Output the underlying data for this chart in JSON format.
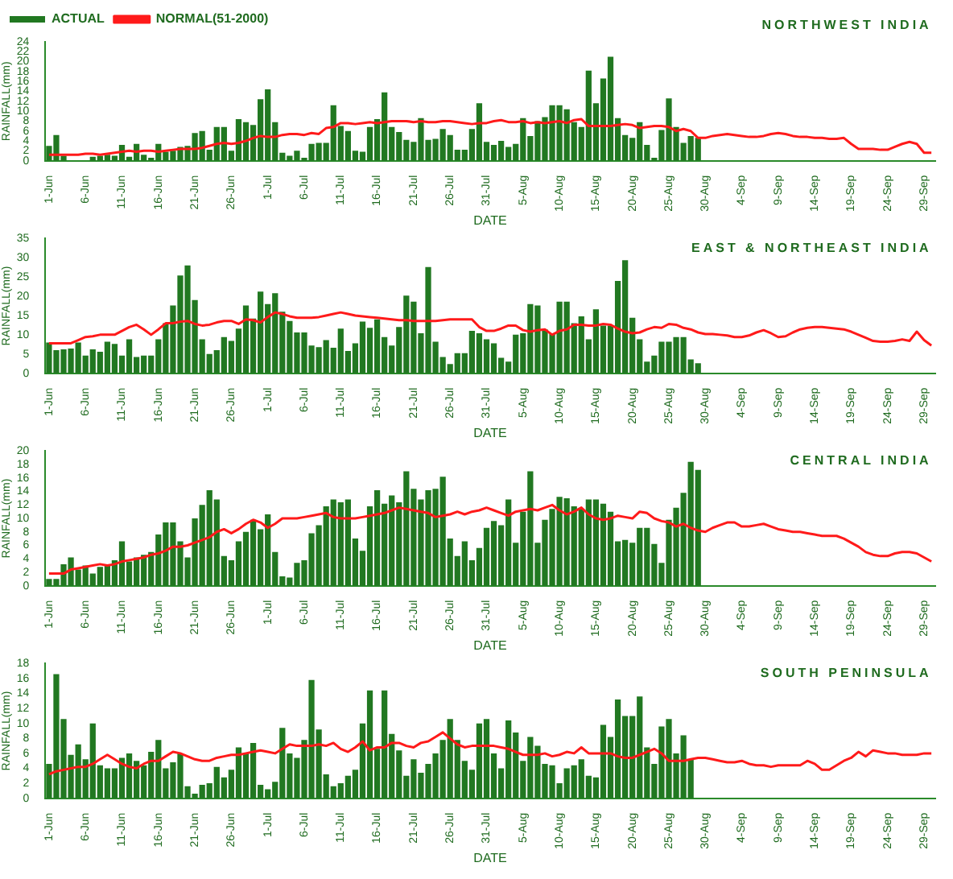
{
  "chart_data": [
    {
      "type": "bar",
      "title": "NORTHWEST INDIA",
      "xlabel": "DATE",
      "ylabel": "RAINFALL(mm)",
      "legend": "top left",
      "grid": false,
      "marker": "none",
      "ylim": [
        0,
        24
      ],
      "yticks": [
        0,
        2,
        4,
        6,
        8,
        10,
        12,
        14,
        16,
        18,
        20,
        22,
        24
      ],
      "categories": [
        "1-Jun",
        null,
        null,
        null,
        null,
        "6-Jun",
        null,
        null,
        null,
        null,
        "11-Jun",
        null,
        null,
        null,
        null,
        "16-Jun",
        null,
        null,
        null,
        null,
        "21-Jun",
        null,
        null,
        null,
        null,
        "26-Jun",
        null,
        null,
        null,
        null,
        "1-Jul",
        null,
        null,
        null,
        null,
        "6-Jul",
        null,
        null,
        null,
        null,
        "11-Jul",
        null,
        null,
        null,
        null,
        "16-Jul",
        null,
        null,
        null,
        null,
        "21-Jul",
        null,
        null,
        null,
        null,
        "26-Jul",
        null,
        null,
        null,
        null,
        "31-Jul",
        null,
        null,
        null,
        null,
        "5-Aug",
        null,
        null,
        null,
        null,
        "10-Aug",
        null,
        null,
        null,
        null,
        "15-Aug",
        null,
        null,
        null,
        null,
        "20-Aug",
        null,
        null,
        null,
        null,
        "25-Aug",
        null,
        null,
        null,
        null,
        "30-Aug",
        null,
        null,
        null,
        null,
        "4-Sep",
        null,
        null,
        null,
        null,
        "9-Sep",
        null,
        null,
        null,
        null,
        "14-Sep",
        null,
        null,
        null,
        null,
        "19-Sep",
        null,
        null,
        null,
        null,
        "24-Sep",
        null,
        null,
        null,
        null,
        "29-Sep",
        null
      ],
      "series": [
        {
          "name": "ACTUAL",
          "color": "#217821",
          "values": [
            3,
            5.2,
            1,
            null,
            0,
            null,
            0.8,
            1,
            1.2,
            1,
            3.2,
            0.8,
            3.4,
            1.2,
            0.6,
            3.4,
            1.8,
            2,
            2.8,
            3,
            5.6,
            6,
            2.2,
            6.8,
            6.8,
            2,
            8.4,
            7.8,
            7.2,
            12.4,
            14.4,
            7.8,
            1.6,
            1,
            2,
            0.6,
            3.4,
            3.6,
            3.6,
            11.2,
            7,
            6,
            2,
            1.8,
            6.8,
            8.4,
            13.8,
            6.8,
            5.8,
            4.2,
            3.8,
            8.6,
            4.2,
            4.4,
            6.4,
            5.2,
            2.2,
            2.2,
            6.4,
            11.6,
            3.8,
            3.2,
            4,
            2.8,
            3.4,
            8.6,
            5,
            8,
            8.8,
            11.2,
            11.2,
            10.4,
            7.8,
            6.8,
            18.2,
            11.6,
            16.6,
            21,
            8.6,
            5.2,
            4.6,
            7.8,
            3.2,
            0.6,
            6.2,
            12.6,
            6.8,
            3.6,
            5,
            4.6,
            null,
            null,
            null,
            null,
            null,
            null,
            null,
            null,
            null,
            null,
            null,
            null,
            null,
            null,
            null,
            null,
            null,
            null,
            null,
            null,
            null,
            null,
            null,
            null,
            null,
            null,
            null,
            null,
            null,
            null,
            null,
            null
          ]
        },
        {
          "name": "NORMAL(51-2000)",
          "type": "line",
          "color": "#ff1a1a",
          "values": [
            1.2,
            1.2,
            1.2,
            1.2,
            1.2,
            1.4,
            1.4,
            1.2,
            1.4,
            1.6,
            1.8,
            2,
            1.8,
            2,
            2,
            1.8,
            2,
            2.2,
            2.4,
            2.4,
            2.4,
            2.6,
            3,
            3.4,
            3.6,
            3.4,
            3.6,
            4,
            4.6,
            5,
            4.8,
            4.8,
            5.2,
            5.4,
            5.4,
            5.2,
            5.6,
            5.4,
            6.6,
            6.8,
            7.6,
            7.6,
            7.4,
            7.6,
            7.8,
            7.6,
            7.8,
            8,
            8,
            8,
            7.8,
            8,
            7.8,
            7.8,
            8,
            8,
            7.8,
            7.6,
            7.4,
            7.6,
            7.6,
            8,
            8.2,
            7.8,
            7.8,
            8,
            7.6,
            7.8,
            7.6,
            7.8,
            8,
            7.6,
            8.2,
            8.4,
            7,
            7,
            7,
            7,
            7.2,
            7.4,
            7.2,
            6.6,
            6.8,
            7,
            7,
            6.8,
            6,
            6.4,
            6,
            4.6,
            4.6,
            5,
            5.2,
            5.4,
            5.2,
            5,
            4.8,
            4.8,
            5,
            5.4,
            5.6,
            5.4,
            5,
            4.8,
            4.8,
            4.6,
            4.6,
            4.4,
            4.4,
            4.6,
            3.4,
            2.4,
            2.4,
            2.4,
            2.2,
            2.2,
            2.8,
            3.4,
            3.8,
            3.4,
            1.6,
            1.6
          ]
        }
      ]
    },
    {
      "type": "bar",
      "title": "EAST & NORTHEAST INDIA",
      "xlabel": "DATE",
      "ylabel": "RAINFALL(mm)",
      "grid": false,
      "marker": "none",
      "ylim": [
        0,
        35
      ],
      "yticks": [
        0,
        5,
        10,
        15,
        20,
        25,
        30,
        35
      ],
      "categories": [
        "1-Jun",
        null,
        null,
        null,
        null,
        "6-Jun",
        null,
        null,
        null,
        null,
        "11-Jun",
        null,
        null,
        null,
        null,
        "16-Jun",
        null,
        null,
        null,
        null,
        "21-Jun",
        null,
        null,
        null,
        null,
        "26-Jun",
        null,
        null,
        null,
        null,
        "1-Jul",
        null,
        null,
        null,
        null,
        "6-Jul",
        null,
        null,
        null,
        null,
        "11-Jul",
        null,
        null,
        null,
        null,
        "16-Jul",
        null,
        null,
        null,
        null,
        "21-Jul",
        null,
        null,
        null,
        null,
        "26-Jul",
        null,
        null,
        null,
        null,
        "31-Jul",
        null,
        null,
        null,
        null,
        "5-Aug",
        null,
        null,
        null,
        null,
        "10-Aug",
        null,
        null,
        null,
        null,
        "15-Aug",
        null,
        null,
        null,
        null,
        "20-Aug",
        null,
        null,
        null,
        null,
        "25-Aug",
        null,
        null,
        null,
        null,
        "30-Aug",
        null,
        null,
        null,
        null,
        "4-Sep",
        null,
        null,
        null,
        null,
        "9-Sep",
        null,
        null,
        null,
        null,
        "14-Sep",
        null,
        null,
        null,
        null,
        "19-Sep",
        null,
        null,
        null,
        null,
        "24-Sep",
        null,
        null,
        null,
        null,
        "29-Sep",
        null
      ],
      "series": [
        {
          "color": "#217821",
          "values": [
            8,
            6,
            6.2,
            6.4,
            8,
            4.6,
            6.2,
            5.6,
            8.2,
            7.6,
            4.6,
            8.8,
            4.2,
            4.6,
            4.6,
            8.8,
            13,
            17.6,
            25.4,
            28,
            19,
            8.8,
            5,
            6,
            9.4,
            8.4,
            11.6,
            17.6,
            14.2,
            21.2,
            18,
            20.8,
            16,
            13.6,
            10.6,
            10.6,
            7.2,
            6.8,
            8.6,
            6.6,
            11.6,
            5.8,
            7.8,
            13.4,
            11.8,
            14,
            9.4,
            7.2,
            12,
            20.2,
            18.6,
            10.4,
            27.6,
            8.2,
            4.2,
            2.4,
            5.2,
            5.2,
            11,
            10.4,
            8.8,
            7.8,
            4,
            3,
            10,
            10.4,
            18,
            17.6,
            11.4,
            10.4,
            18.6,
            18.6,
            13,
            14.8,
            8.8,
            16.6,
            12.4,
            12.4,
            24,
            29.4,
            14.4,
            8.8,
            3,
            4.6,
            8.2,
            8.2,
            9.4,
            9.4,
            3.6,
            2.6,
            null,
            null,
            null,
            null,
            null,
            null,
            null,
            null,
            null,
            null,
            null,
            null,
            null,
            null,
            null,
            null,
            null,
            null,
            null,
            null,
            null,
            null,
            null,
            null,
            null,
            null,
            null,
            null,
            null,
            null,
            null,
            null
          ]
        },
        {
          "type": "line",
          "color": "#ff1a1a",
          "values": [
            7.8,
            7.8,
            7.8,
            7.8,
            8.6,
            9.4,
            9.6,
            10,
            10,
            10,
            11,
            12,
            12.6,
            11.4,
            10,
            11.4,
            13,
            13,
            13.4,
            13.6,
            12.8,
            12.4,
            12.6,
            13.2,
            13.6,
            13.6,
            12.8,
            14,
            13.8,
            13.2,
            14.6,
            15.8,
            15.4,
            14.8,
            14.4,
            14.4,
            14.4,
            14.6,
            15,
            15.4,
            15.8,
            15.4,
            15,
            14.8,
            14.6,
            14.4,
            14.2,
            14,
            13.8,
            13.8,
            13.6,
            13.6,
            13.6,
            13.6,
            13.8,
            14,
            14,
            14,
            14,
            12,
            11,
            11,
            11.6,
            12.4,
            12.4,
            11.2,
            10.8,
            11.2,
            11.4,
            10,
            11,
            11.4,
            12.6,
            12.6,
            12.4,
            12.4,
            12.8,
            12.6,
            11.6,
            10.8,
            10.4,
            10.6,
            11.4,
            12,
            11.8,
            12.8,
            12.6,
            11.8,
            11.4,
            10.6,
            10.2,
            10.2,
            10,
            9.8,
            9.4,
            9.4,
            9.8,
            10.6,
            11.2,
            10.4,
            9.4,
            9.6,
            10.6,
            11.4,
            11.8,
            12,
            12,
            11.8,
            11.6,
            11.4,
            10.8,
            10,
            9.2,
            8.4,
            8.2,
            8.2,
            8.4,
            8.8,
            8.4,
            10.8,
            8.6,
            7.2
          ]
        }
      ]
    },
    {
      "type": "bar",
      "title": "CENTRAL INDIA",
      "xlabel": "DATE",
      "ylabel": "RAINFALL(mm)",
      "grid": false,
      "marker": "none",
      "ylim": [
        0,
        20
      ],
      "yticks": [
        0,
        2,
        4,
        6,
        8,
        10,
        12,
        14,
        16,
        18,
        20
      ],
      "categories": [
        "1-Jun",
        null,
        null,
        null,
        null,
        "6-Jun",
        null,
        null,
        null,
        null,
        "11-Jun",
        null,
        null,
        null,
        null,
        "16-Jun",
        null,
        null,
        null,
        null,
        "21-Jun",
        null,
        null,
        null,
        null,
        "26-Jun",
        null,
        null,
        null,
        null,
        "1-Jul",
        null,
        null,
        null,
        null,
        "6-Jul",
        null,
        null,
        null,
        null,
        "11-Jul",
        null,
        null,
        null,
        null,
        "16-Jul",
        null,
        null,
        null,
        null,
        "21-Jul",
        null,
        null,
        null,
        null,
        "26-Jul",
        null,
        null,
        null,
        null,
        "31-Jul",
        null,
        null,
        null,
        null,
        "5-Aug",
        null,
        null,
        null,
        null,
        "10-Aug",
        null,
        null,
        null,
        null,
        "15-Aug",
        null,
        null,
        null,
        null,
        "20-Aug",
        null,
        null,
        null,
        null,
        "25-Aug",
        null,
        null,
        null,
        null,
        "30-Aug",
        null,
        null,
        null,
        null,
        "4-Sep",
        null,
        null,
        null,
        null,
        "9-Sep",
        null,
        null,
        null,
        null,
        "14-Sep",
        null,
        null,
        null,
        null,
        "19-Sep",
        null,
        null,
        null,
        null,
        "24-Sep",
        null,
        null,
        null,
        null,
        "29-Sep",
        null
      ],
      "series": [
        {
          "color": "#217821",
          "values": [
            1,
            1,
            3.2,
            4.2,
            2.4,
            3,
            1.8,
            2.8,
            3,
            3.8,
            6.6,
            3.6,
            4.2,
            4.6,
            5,
            7.6,
            9.4,
            9.4,
            6.6,
            4.2,
            10,
            12,
            14.2,
            12.8,
            4.4,
            3.8,
            6.6,
            8,
            9.8,
            8.4,
            10.6,
            5,
            1.4,
            1.2,
            3.4,
            3.8,
            7.8,
            9,
            11.8,
            12.8,
            12.4,
            12.8,
            7,
            5.2,
            11.8,
            14.2,
            12.2,
            13.4,
            12.4,
            17,
            14.4,
            12.8,
            14.2,
            14.4,
            16.2,
            7,
            4.4,
            6.6,
            3.8,
            5.6,
            8.6,
            9.6,
            9,
            12.8,
            6.4,
            11,
            17,
            6.4,
            9.8,
            11.4,
            13.2,
            13,
            11.8,
            11.4,
            12.8,
            12.8,
            12.2,
            11,
            6.6,
            6.8,
            6.4,
            8.6,
            8.6,
            6.2,
            3.4,
            9.8,
            11.6,
            13.8,
            18.4,
            17.2,
            null,
            null,
            null,
            null,
            null,
            null,
            null,
            null,
            null,
            null,
            null,
            null,
            null,
            null,
            null,
            null,
            null,
            null,
            null,
            null,
            null,
            null,
            null,
            null,
            null,
            null,
            null,
            null,
            null,
            null,
            null,
            null
          ]
        },
        {
          "type": "line",
          "color": "#ff1a1a",
          "values": [
            1.8,
            1.8,
            1.8,
            2.4,
            2.6,
            2.8,
            3,
            3.2,
            3,
            3.2,
            3.6,
            3.8,
            4,
            4.2,
            4.6,
            4.8,
            5.2,
            5.8,
            5.8,
            6,
            6.4,
            6.8,
            7.2,
            8,
            8.4,
            7.8,
            8.4,
            9.2,
            9.8,
            9.4,
            8.6,
            9.2,
            10,
            10,
            10,
            10.2,
            10.4,
            10.6,
            10.8,
            10.2,
            10,
            10,
            10,
            10.2,
            10.4,
            10.6,
            10.8,
            11.2,
            11.6,
            11.4,
            11.2,
            11,
            10.8,
            10.2,
            10.4,
            10.6,
            11,
            10.6,
            11,
            11.2,
            11.6,
            11.2,
            10.8,
            10.4,
            11,
            11.2,
            11.4,
            11.2,
            11.6,
            12,
            11.2,
            10.6,
            11,
            11.6,
            10.6,
            10,
            9.8,
            10,
            10.4,
            10.2,
            10,
            11,
            10.8,
            10,
            9.6,
            9.4,
            8.8,
            9.2,
            8.6,
            8.2,
            8,
            8.6,
            9,
            9.4,
            9.4,
            8.8,
            8.8,
            9,
            9.2,
            8.8,
            8.4,
            8.2,
            8,
            8,
            7.8,
            7.6,
            7.4,
            7.4,
            7.4,
            7,
            6.4,
            5.8,
            5,
            4.6,
            4.4,
            4.4,
            4.8,
            5,
            5,
            4.8,
            4.2,
            3.6
          ]
        }
      ]
    },
    {
      "type": "bar",
      "title": "SOUTH PENINSULA",
      "xlabel": "DATE",
      "ylabel": "RAINFALL(mm)",
      "grid": false,
      "marker": "none",
      "ylim": [
        0,
        18
      ],
      "yticks": [
        0,
        2,
        4,
        6,
        8,
        10,
        12,
        14,
        16,
        18
      ],
      "categories": [
        "1-Jun",
        null,
        null,
        null,
        null,
        "6-Jun",
        null,
        null,
        null,
        null,
        "11-Jun",
        null,
        null,
        null,
        null,
        "16-Jun",
        null,
        null,
        null,
        null,
        "21-Jun",
        null,
        null,
        null,
        null,
        "26-Jun",
        null,
        null,
        null,
        null,
        "1-Jul",
        null,
        null,
        null,
        null,
        "6-Jul",
        null,
        null,
        null,
        null,
        "11-Jul",
        null,
        null,
        null,
        null,
        "16-Jul",
        null,
        null,
        null,
        null,
        "21-Jul",
        null,
        null,
        null,
        null,
        "26-Jul",
        null,
        null,
        null,
        null,
        "31-Jul",
        null,
        null,
        null,
        null,
        "5-Aug",
        null,
        null,
        null,
        null,
        "10-Aug",
        null,
        null,
        null,
        null,
        "15-Aug",
        null,
        null,
        null,
        null,
        "20-Aug",
        null,
        null,
        null,
        null,
        "25-Aug",
        null,
        null,
        null,
        null,
        "30-Aug",
        null,
        null,
        null,
        null,
        "4-Sep",
        null,
        null,
        null,
        null,
        "9-Sep",
        null,
        null,
        null,
        null,
        "14-Sep",
        null,
        null,
        null,
        null,
        "19-Sep",
        null,
        null,
        null,
        null,
        "24-Sep",
        null,
        null,
        null,
        null,
        "29-Sep",
        null
      ],
      "series": [
        {
          "color": "#217821",
          "values": [
            4.6,
            16.6,
            10.6,
            5.8,
            7.2,
            5.2,
            10,
            4.4,
            4,
            4,
            5.4,
            6,
            5,
            4.4,
            6.2,
            7.8,
            4,
            4.8,
            6,
            1.6,
            0.6,
            1.8,
            2,
            4.2,
            2.8,
            3.8,
            6.8,
            6,
            7.4,
            1.8,
            1.2,
            2.2,
            9.4,
            6,
            5.4,
            7.8,
            15.8,
            9.2,
            3.2,
            1.6,
            2,
            3,
            3.8,
            10,
            14.4,
            6.6,
            14.4,
            8.6,
            6.4,
            3,
            5.2,
            3.4,
            4.6,
            6,
            7.8,
            10.6,
            7.8,
            5,
            3.8,
            10,
            10.6,
            6,
            4,
            10.4,
            8.8,
            5,
            8.2,
            7,
            4.6,
            4.4,
            2,
            4,
            4.4,
            5.2,
            3,
            2.8,
            9.8,
            8.2,
            13.2,
            11,
            11,
            13.6,
            6.8,
            4.6,
            9.6,
            10.6,
            6,
            8.4,
            5.2,
            null,
            null,
            null,
            null,
            null,
            null,
            null,
            null,
            null,
            null,
            null,
            null,
            null,
            null,
            null,
            null,
            null,
            null,
            null,
            null,
            null,
            null,
            null,
            null,
            null,
            null,
            null,
            null,
            null,
            null,
            null,
            null,
            null
          ]
        },
        {
          "type": "line",
          "color": "#ff1a1a",
          "values": [
            3.2,
            3.6,
            3.8,
            4,
            4.2,
            4.2,
            4.6,
            5.2,
            5.8,
            5.2,
            4.6,
            4.2,
            4,
            4.6,
            5,
            5,
            5.6,
            6.2,
            6,
            5.6,
            5.2,
            5,
            5,
            5.4,
            5.6,
            5.8,
            5.8,
            6,
            6.2,
            6.4,
            6.2,
            6,
            6.6,
            7.2,
            7,
            7,
            7,
            7.2,
            7,
            7.4,
            6.6,
            6.2,
            6.8,
            7.6,
            6.4,
            6.8,
            6.8,
            7.4,
            7.4,
            7,
            6.8,
            7.4,
            7.6,
            8.2,
            8.8,
            8,
            7.2,
            6.8,
            7,
            7,
            7,
            7,
            6.8,
            6.6,
            6.2,
            5.8,
            5.8,
            5.8,
            6,
            5.6,
            5.8,
            6.2,
            6,
            6.8,
            6,
            6,
            6,
            6,
            5.6,
            5.4,
            5.4,
            5.8,
            6.2,
            6.6,
            6,
            5,
            5,
            5,
            5.2,
            5.4,
            5.4,
            5.2,
            5,
            4.8,
            4.8,
            5,
            4.6,
            4.4,
            4.4,
            4.2,
            4.4,
            4.4,
            4.4,
            4.4,
            5,
            4.6,
            3.8,
            3.8,
            4.4,
            5,
            5.4,
            6.2,
            5.6,
            6.4,
            6.2,
            6,
            6,
            5.8,
            5.8,
            5.8,
            6,
            6
          ]
        }
      ]
    }
  ]
}
